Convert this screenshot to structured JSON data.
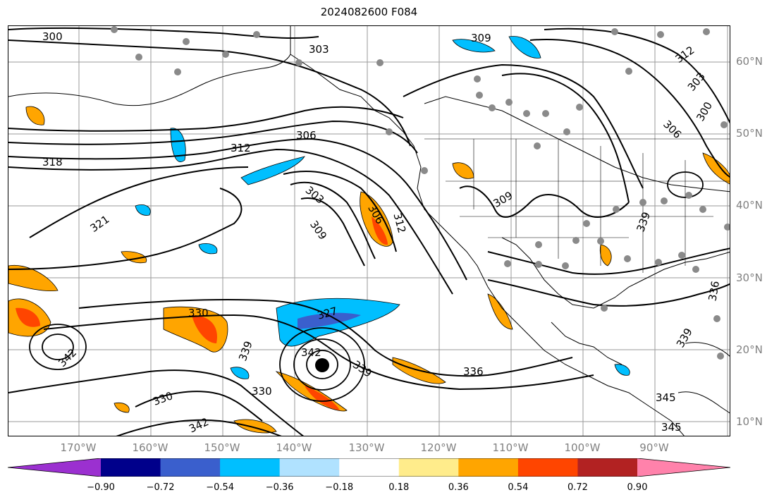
{
  "title": "2024082600 F084",
  "map": {
    "lat_labels": [
      "60°N",
      "50°N",
      "40°N",
      "30°N",
      "20°N",
      "10°N"
    ],
    "lon_labels": [
      "170°W",
      "160°W",
      "150°W",
      "140°W",
      "130°W",
      "120°W",
      "110°W",
      "100°W",
      "90°W"
    ],
    "contour_labels": [
      "300",
      "303",
      "309",
      "312",
      "303",
      "306",
      "312",
      "318",
      "321",
      "303",
      "306",
      "309",
      "312",
      "330",
      "327",
      "339",
      "342",
      "342",
      "339",
      "336",
      "330",
      "330",
      "342",
      "339",
      "345",
      "345",
      "336",
      "339",
      "309",
      "306",
      "300"
    ]
  },
  "colorbar": {
    "ticks": [
      "−0.90",
      "−0.72",
      "−0.54",
      "−0.36",
      "−0.18",
      "0.18",
      "0.36",
      "0.54",
      "0.72",
      "0.90"
    ],
    "colors": [
      "#9b30d0",
      "#00008b",
      "#3a5fcd",
      "#00bfff",
      "#b0e2ff",
      "#ffffff",
      "#ffec8b",
      "#ffa500",
      "#ff4500",
      "#b22222",
      "#ff82ab"
    ]
  }
}
